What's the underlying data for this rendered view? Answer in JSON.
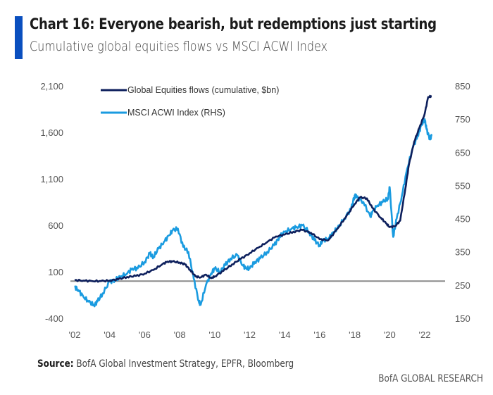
{
  "header": {
    "title": "Chart 16: Everyone bearish, but redemptions just starting",
    "subtitle": "Cumulative global equities flows vs MSCI ACWI Index"
  },
  "footer": {
    "source_label": "Source:",
    "source_text": " BofA Global Investment Strategy, EPFR, Bloomberg",
    "brand": "BofA GLOBAL RESEARCH"
  },
  "colors": {
    "accent": "#0a4fbf",
    "flows": "#0d1f5c",
    "msci": "#1a9be0",
    "baseline": "#8a8a8a"
  },
  "chart_data": {
    "type": "line",
    "title": "Chart 16: Everyone bearish, but redemptions just starting",
    "subtitle": "Cumulative global equities flows vs MSCI ACWI Index",
    "xlabel": "",
    "ylabel_left": "Global Equities flows (cumulative, $bn)",
    "ylabel_right": "MSCI ACWI Index (RHS)",
    "x_ticks": [
      "'02",
      "'04",
      "'06",
      "'08",
      "'10",
      "'12",
      "'14",
      "'16",
      "'18",
      "'20",
      "'22"
    ],
    "x_tick_years": [
      2002,
      2004,
      2006,
      2008,
      2010,
      2012,
      2014,
      2016,
      2018,
      2020,
      2022
    ],
    "xlim": [
      2002,
      2022.6
    ],
    "y_left_ticks": [
      "2,100",
      "1,600",
      "1,100",
      "600",
      "100",
      "-400"
    ],
    "y_left_tick_values": [
      2100,
      1600,
      1100,
      600,
      100,
      -400
    ],
    "ylim_left": [
      -400,
      2100
    ],
    "y_right_ticks": [
      "850",
      "750",
      "650",
      "550",
      "450",
      "350",
      "250",
      "150"
    ],
    "y_right_tick_values": [
      850,
      750,
      650,
      550,
      450,
      350,
      250,
      150
    ],
    "ylim_right": [
      150,
      850
    ],
    "baseline": {
      "axis": "left",
      "value": 0
    },
    "legend": {
      "placement": "top-left",
      "entries": [
        "Global Equities flows (cumulative, $bn)",
        "MSCI ACWI Index (RHS)"
      ]
    },
    "grid": false,
    "series": [
      {
        "name": "Global Equities flows (cumulative, $bn)",
        "axis": "left",
        "x": [
          2002.0,
          2002.5,
          2003.0,
          2003.5,
          2004.0,
          2004.5,
          2005.0,
          2005.5,
          2006.0,
          2006.5,
          2007.0,
          2007.3,
          2007.6,
          2008.0,
          2008.3,
          2008.6,
          2008.9,
          2009.2,
          2009.5,
          2009.8,
          2010.0,
          2010.5,
          2011.0,
          2011.5,
          2012.0,
          2012.5,
          2013.0,
          2013.5,
          2014.0,
          2014.5,
          2015.0,
          2015.5,
          2016.0,
          2016.5,
          2017.0,
          2017.5,
          2018.0,
          2018.3,
          2018.7,
          2019.0,
          2019.5,
          2019.8,
          2020.0,
          2020.3,
          2020.6,
          2020.9,
          2021.1,
          2021.4,
          2021.7,
          2022.0,
          2022.2,
          2022.4
        ],
        "values": [
          10,
          5,
          0,
          0,
          5,
          20,
          45,
          55,
          80,
          120,
          180,
          210,
          210,
          200,
          180,
          120,
          50,
          40,
          70,
          30,
          50,
          110,
          180,
          240,
          300,
          360,
          420,
          480,
          500,
          530,
          550,
          520,
          450,
          440,
          560,
          690,
          830,
          900,
          890,
          790,
          680,
          620,
          580,
          590,
          650,
          1000,
          1250,
          1500,
          1650,
          1800,
          1980,
          1990
        ]
      },
      {
        "name": "MSCI ACWI Index (RHS)",
        "axis": "right",
        "x": [
          2002.0,
          2002.2,
          2002.5,
          2002.8,
          2003.1,
          2003.3,
          2003.6,
          2004.0,
          2004.3,
          2004.6,
          2005.0,
          2005.3,
          2005.6,
          2006.0,
          2006.3,
          2006.5,
          2006.8,
          2007.1,
          2007.4,
          2007.6,
          2007.9,
          2008.2,
          2008.5,
          2008.8,
          2009.1,
          2009.2,
          2009.5,
          2009.8,
          2010.0,
          2010.3,
          2010.6,
          2010.9,
          2011.3,
          2011.6,
          2011.8,
          2012.0,
          2012.3,
          2012.6,
          2013.0,
          2013.4,
          2013.7,
          2014.0,
          2014.4,
          2014.7,
          2015.0,
          2015.4,
          2015.7,
          2016.0,
          2016.2,
          2016.5,
          2016.8,
          2017.0,
          2017.4,
          2017.8,
          2018.0,
          2018.1,
          2018.5,
          2018.9,
          2019.0,
          2019.3,
          2019.6,
          2019.9,
          2020.0,
          2020.2,
          2020.4,
          2020.7,
          2021.0,
          2021.3,
          2021.6,
          2021.8,
          2022.0,
          2022.1,
          2022.3,
          2022.4
        ],
        "values": [
          245,
          235,
          215,
          200,
          190,
          200,
          225,
          260,
          265,
          275,
          285,
          300,
          300,
          320,
          345,
          335,
          360,
          380,
          400,
          415,
          420,
          365,
          350,
          270,
          200,
          190,
          250,
          285,
          300,
          290,
          310,
          330,
          340,
          310,
          300,
          300,
          320,
          330,
          350,
          370,
          395,
          410,
          420,
          425,
          430,
          410,
          385,
          370,
          385,
          390,
          410,
          420,
          450,
          480,
          520,
          515,
          500,
          455,
          470,
          490,
          500,
          510,
          545,
          395,
          450,
          520,
          600,
          660,
          700,
          730,
          750,
          720,
          690,
          700
        ]
      }
    ]
  }
}
